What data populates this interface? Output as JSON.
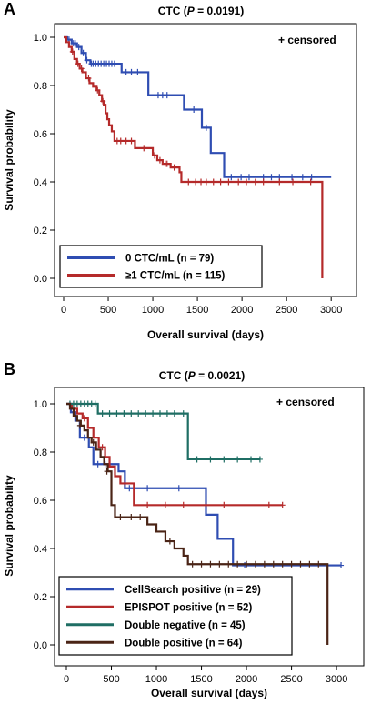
{
  "chart_data": [
    {
      "type": "line",
      "panel_label": "A",
      "title_prefix": "CTC (",
      "title_p": "P",
      "title_suffix": " = 0.0191)",
      "xlabel": "Overall survival (days)",
      "ylabel": "Survival probability",
      "xlim": [
        0,
        3100
      ],
      "ylim": [
        0,
        1.0
      ],
      "xticks": [
        0,
        500,
        1000,
        1500,
        2000,
        2500,
        3000
      ],
      "yticks": [
        0.0,
        0.2,
        0.4,
        0.6,
        0.8,
        1.0
      ],
      "annotation": "+ censored",
      "legend_position": "bottom-left",
      "series": [
        {
          "name": "0 CTC/mL (n = 79)",
          "color": "#2f4db2",
          "steps": [
            [
              0,
              1.0
            ],
            [
              40,
              0.99
            ],
            [
              90,
              0.975
            ],
            [
              150,
              0.96
            ],
            [
              200,
              0.935
            ],
            [
              250,
              0.905
            ],
            [
              300,
              0.89
            ],
            [
              650,
              0.855
            ],
            [
              950,
              0.76
            ],
            [
              1350,
              0.7
            ],
            [
              1550,
              0.625
            ],
            [
              1650,
              0.52
            ],
            [
              1800,
              0.42
            ],
            [
              3000,
              0.42
            ]
          ],
          "censored": [
            [
              60,
              0.99
            ],
            [
              110,
              0.975
            ],
            [
              130,
              0.975
            ],
            [
              170,
              0.96
            ],
            [
              220,
              0.935
            ],
            [
              260,
              0.905
            ],
            [
              310,
              0.89
            ],
            [
              330,
              0.89
            ],
            [
              360,
              0.89
            ],
            [
              390,
              0.89
            ],
            [
              420,
              0.89
            ],
            [
              450,
              0.89
            ],
            [
              480,
              0.89
            ],
            [
              510,
              0.89
            ],
            [
              540,
              0.89
            ],
            [
              570,
              0.89
            ],
            [
              700,
              0.855
            ],
            [
              760,
              0.855
            ],
            [
              830,
              0.855
            ],
            [
              1060,
              0.76
            ],
            [
              1110,
              0.76
            ],
            [
              1160,
              0.76
            ],
            [
              1460,
              0.7
            ],
            [
              1600,
              0.625
            ],
            [
              1880,
              0.42
            ],
            [
              1990,
              0.42
            ],
            [
              2080,
              0.42
            ],
            [
              2240,
              0.42
            ],
            [
              2330,
              0.42
            ],
            [
              2420,
              0.42
            ],
            [
              2560,
              0.42
            ],
            [
              2680,
              0.42
            ],
            [
              2780,
              0.42
            ]
          ]
        },
        {
          "name": "≥1 CTC/mL (n = 115)",
          "color": "#b52a2a",
          "steps": [
            [
              0,
              1.0
            ],
            [
              30,
              0.98
            ],
            [
              60,
              0.96
            ],
            [
              90,
              0.94
            ],
            [
              120,
              0.91
            ],
            [
              150,
              0.89
            ],
            [
              180,
              0.87
            ],
            [
              210,
              0.855
            ],
            [
              250,
              0.83
            ],
            [
              290,
              0.81
            ],
            [
              330,
              0.795
            ],
            [
              370,
              0.78
            ],
            [
              400,
              0.76
            ],
            [
              430,
              0.735
            ],
            [
              450,
              0.72
            ],
            [
              470,
              0.685
            ],
            [
              490,
              0.66
            ],
            [
              510,
              0.635
            ],
            [
              540,
              0.61
            ],
            [
              570,
              0.57
            ],
            [
              800,
              0.54
            ],
            [
              1000,
              0.51
            ],
            [
              1050,
              0.49
            ],
            [
              1110,
              0.475
            ],
            [
              1200,
              0.46
            ],
            [
              1300,
              0.44
            ],
            [
              1320,
              0.4
            ],
            [
              2900,
              0.4
            ],
            [
              2900,
              0.0
            ]
          ],
          "censored": [
            [
              100,
              0.94
            ],
            [
              160,
              0.89
            ],
            [
              200,
              0.87
            ],
            [
              280,
              0.83
            ],
            [
              380,
              0.78
            ],
            [
              440,
              0.735
            ],
            [
              600,
              0.57
            ],
            [
              640,
              0.57
            ],
            [
              700,
              0.57
            ],
            [
              760,
              0.57
            ],
            [
              900,
              0.54
            ],
            [
              1020,
              0.51
            ],
            [
              1080,
              0.49
            ],
            [
              1140,
              0.475
            ],
            [
              1160,
              0.475
            ],
            [
              1240,
              0.46
            ],
            [
              1400,
              0.4
            ],
            [
              1480,
              0.4
            ],
            [
              1540,
              0.4
            ],
            [
              1600,
              0.4
            ],
            [
              1680,
              0.4
            ],
            [
              1760,
              0.4
            ],
            [
              1850,
              0.4
            ],
            [
              1960,
              0.4
            ],
            [
              2050,
              0.4
            ],
            [
              2150,
              0.4
            ],
            [
              2240,
              0.4
            ],
            [
              2420,
              0.4
            ],
            [
              2570,
              0.4
            ],
            [
              2770,
              0.4
            ]
          ]
        }
      ]
    },
    {
      "type": "line",
      "panel_label": "B",
      "title_prefix": "CTC (",
      "title_p": "P",
      "title_suffix": " = 0.0021)",
      "xlabel": "Overall survival (days)",
      "ylabel": "Survival probability",
      "xlim": [
        0,
        3100
      ],
      "ylim": [
        0,
        1.0
      ],
      "xticks": [
        0,
        500,
        1000,
        1500,
        2000,
        2500,
        3000
      ],
      "yticks": [
        0.0,
        0.2,
        0.4,
        0.6,
        0.8,
        1.0
      ],
      "annotation": "+ censored",
      "legend_position": "bottom-left",
      "series": [
        {
          "name": "CellSearch positive (n = 29)",
          "color": "#2f4db2",
          "steps": [
            [
              0,
              1.0
            ],
            [
              50,
              0.965
            ],
            [
              100,
              0.93
            ],
            [
              150,
              0.86
            ],
            [
              250,
              0.82
            ],
            [
              300,
              0.75
            ],
            [
              580,
              0.72
            ],
            [
              650,
              0.65
            ],
            [
              1550,
              0.54
            ],
            [
              1680,
              0.44
            ],
            [
              1850,
              0.33
            ],
            [
              3050,
              0.33
            ]
          ],
          "censored": [
            [
              200,
              0.86
            ],
            [
              350,
              0.75
            ],
            [
              430,
              0.75
            ],
            [
              700,
              0.65
            ],
            [
              900,
              0.65
            ],
            [
              1250,
              0.65
            ],
            [
              1980,
              0.33
            ],
            [
              3050,
              0.33
            ]
          ]
        },
        {
          "name": "EPISPOT positive (n = 52)",
          "color": "#b52a2a",
          "steps": [
            [
              0,
              1.0
            ],
            [
              60,
              0.98
            ],
            [
              120,
              0.96
            ],
            [
              180,
              0.94
            ],
            [
              240,
              0.9
            ],
            [
              300,
              0.86
            ],
            [
              360,
              0.82
            ],
            [
              430,
              0.78
            ],
            [
              480,
              0.74
            ],
            [
              540,
              0.7
            ],
            [
              600,
              0.67
            ],
            [
              750,
              0.58
            ],
            [
              2400,
              0.58
            ]
          ],
          "censored": [
            [
              200,
              0.94
            ],
            [
              400,
              0.82
            ],
            [
              650,
              0.67
            ],
            [
              900,
              0.58
            ],
            [
              1100,
              0.58
            ],
            [
              1300,
              0.58
            ],
            [
              1550,
              0.58
            ],
            [
              1750,
              0.58
            ],
            [
              2250,
              0.58
            ],
            [
              2400,
              0.58
            ]
          ]
        },
        {
          "name": "Double negative (n = 45)",
          "color": "#1f6e64",
          "steps": [
            [
              0,
              1.0
            ],
            [
              350,
              0.96
            ],
            [
              1350,
              0.77
            ],
            [
              2150,
              0.77
            ]
          ],
          "censored": [
            [
              40,
              1.0
            ],
            [
              80,
              1.0
            ],
            [
              120,
              1.0
            ],
            [
              160,
              1.0
            ],
            [
              200,
              1.0
            ],
            [
              240,
              1.0
            ],
            [
              280,
              1.0
            ],
            [
              320,
              1.0
            ],
            [
              400,
              0.96
            ],
            [
              480,
              0.96
            ],
            [
              560,
              0.96
            ],
            [
              640,
              0.96
            ],
            [
              720,
              0.96
            ],
            [
              800,
              0.96
            ],
            [
              880,
              0.96
            ],
            [
              960,
              0.96
            ],
            [
              1040,
              0.96
            ],
            [
              1120,
              0.96
            ],
            [
              1200,
              0.96
            ],
            [
              1300,
              0.96
            ],
            [
              1450,
              0.77
            ],
            [
              1600,
              0.77
            ],
            [
              1750,
              0.77
            ],
            [
              1900,
              0.77
            ],
            [
              2050,
              0.77
            ],
            [
              2150,
              0.77
            ]
          ]
        },
        {
          "name": "Double positive (n = 64)",
          "color": "#4a2416",
          "steps": [
            [
              0,
              1.0
            ],
            [
              40,
              0.98
            ],
            [
              80,
              0.95
            ],
            [
              120,
              0.93
            ],
            [
              160,
              0.91
            ],
            [
              200,
              0.89
            ],
            [
              240,
              0.86
            ],
            [
              280,
              0.84
            ],
            [
              330,
              0.81
            ],
            [
              380,
              0.78
            ],
            [
              420,
              0.75
            ],
            [
              460,
              0.72
            ],
            [
              500,
              0.58
            ],
            [
              540,
              0.53
            ],
            [
              900,
              0.5
            ],
            [
              1000,
              0.47
            ],
            [
              1100,
              0.43
            ],
            [
              1200,
              0.4
            ],
            [
              1300,
              0.37
            ],
            [
              1350,
              0.335
            ],
            [
              2900,
              0.335
            ],
            [
              2900,
              0.0
            ]
          ],
          "censored": [
            [
              150,
              0.91
            ],
            [
              300,
              0.84
            ],
            [
              450,
              0.72
            ],
            [
              600,
              0.53
            ],
            [
              720,
              0.53
            ],
            [
              820,
              0.53
            ],
            [
              1150,
              0.43
            ],
            [
              1400,
              0.335
            ],
            [
              1500,
              0.335
            ],
            [
              1600,
              0.335
            ],
            [
              1700,
              0.335
            ],
            [
              1800,
              0.335
            ],
            [
              1900,
              0.335
            ],
            [
              2000,
              0.335
            ],
            [
              2100,
              0.335
            ],
            [
              2200,
              0.335
            ],
            [
              2300,
              0.335
            ],
            [
              2400,
              0.335
            ],
            [
              2500,
              0.335
            ],
            [
              2600,
              0.335
            ],
            [
              2700,
              0.335
            ],
            [
              2800,
              0.335
            ]
          ]
        }
      ]
    }
  ]
}
